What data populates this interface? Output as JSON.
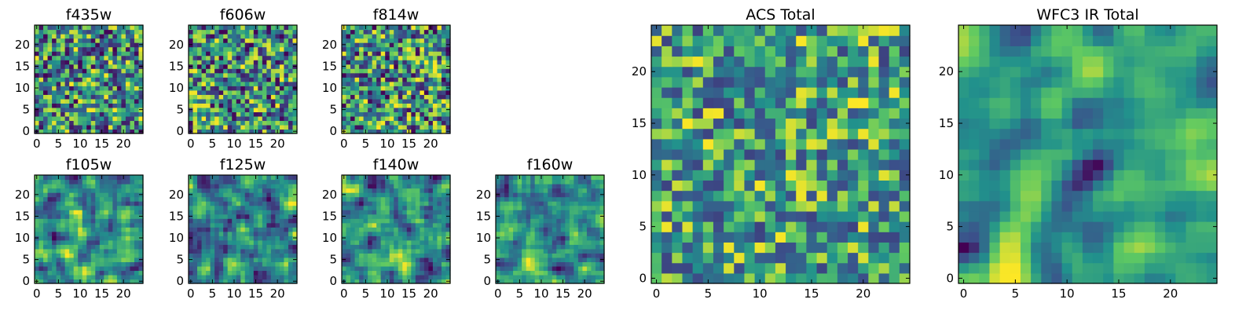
{
  "colormap": [
    "#440154",
    "#3b528b",
    "#21918c",
    "#5ec962",
    "#fde725"
  ],
  "chart_data": [
    {
      "type": "heatmap",
      "title": "f435w",
      "nx": 25,
      "ny": 25,
      "xlim": [
        0,
        24
      ],
      "ylim": [
        0,
        24
      ],
      "xticks": [
        0,
        5,
        10,
        15,
        20
      ],
      "yticks": [
        0,
        5,
        10,
        15,
        20
      ],
      "seed": 101,
      "smooth": 0,
      "contrast": 1.0,
      "lowbias": 0.0
    },
    {
      "type": "heatmap",
      "title": "f606w",
      "nx": 25,
      "ny": 25,
      "xlim": [
        0,
        24
      ],
      "ylim": [
        0,
        24
      ],
      "xticks": [
        0,
        5,
        10,
        15,
        20
      ],
      "yticks": [
        0,
        5,
        10,
        15,
        20
      ],
      "seed": 202,
      "smooth": 0,
      "contrast": 1.0,
      "lowbias": 0.0
    },
    {
      "type": "heatmap",
      "title": "f814w",
      "nx": 25,
      "ny": 25,
      "xlim": [
        0,
        24
      ],
      "ylim": [
        0,
        24
      ],
      "xticks": [
        0,
        5,
        10,
        15,
        20
      ],
      "yticks": [
        0,
        5,
        10,
        15,
        20
      ],
      "seed": 303,
      "smooth": 0,
      "contrast": 1.0,
      "lowbias": 0.0
    },
    {
      "type": "heatmap",
      "title": "f105w",
      "nx": 25,
      "ny": 25,
      "xlim": [
        0,
        24
      ],
      "ylim": [
        0,
        24
      ],
      "xticks": [
        0,
        5,
        10,
        15,
        20
      ],
      "yticks": [
        0,
        5,
        10,
        15,
        20
      ],
      "seed": 404,
      "smooth": 1,
      "contrast": 1.0,
      "lowbias": 0.0
    },
    {
      "type": "heatmap",
      "title": "f125w",
      "nx": 25,
      "ny": 25,
      "xlim": [
        0,
        24
      ],
      "ylim": [
        0,
        24
      ],
      "xticks": [
        0,
        5,
        10,
        15,
        20
      ],
      "yticks": [
        0,
        5,
        10,
        15,
        20
      ],
      "seed": 505,
      "smooth": 1,
      "contrast": 1.0,
      "lowbias": 0.0
    },
    {
      "type": "heatmap",
      "title": "f140w",
      "nx": 25,
      "ny": 25,
      "xlim": [
        0,
        24
      ],
      "ylim": [
        0,
        24
      ],
      "xticks": [
        0,
        5,
        10,
        15,
        20
      ],
      "yticks": [
        0,
        5,
        10,
        15,
        20
      ],
      "seed": 606,
      "smooth": 1,
      "contrast": 1.0,
      "lowbias": 0.0
    },
    {
      "type": "heatmap",
      "title": "f160w",
      "nx": 25,
      "ny": 25,
      "xlim": [
        0,
        24
      ],
      "ylim": [
        0,
        24
      ],
      "xticks": [
        0,
        5,
        10,
        15,
        20
      ],
      "yticks": [
        0,
        5,
        10,
        15,
        20
      ],
      "seed": 707,
      "smooth": 1,
      "contrast": 1.0,
      "lowbias": 0.0
    },
    {
      "type": "heatmap",
      "title": "ACS Total",
      "nx": 25,
      "ny": 25,
      "xlim": [
        0,
        24
      ],
      "ylim": [
        0,
        24
      ],
      "xticks": [
        0,
        5,
        10,
        15,
        20
      ],
      "yticks": [
        0,
        5,
        10,
        15,
        20
      ],
      "seed": 808,
      "smooth": 0,
      "contrast": 0.8,
      "lowbias": 0.2
    },
    {
      "type": "heatmap",
      "title": "WFC3 IR Total",
      "nx": 25,
      "ny": 25,
      "xlim": [
        0,
        24
      ],
      "ylim": [
        0,
        24
      ],
      "xticks": [
        0,
        5,
        10,
        15,
        20
      ],
      "yticks": [
        0,
        5,
        10,
        15,
        20
      ],
      "seed": 909,
      "smooth": 2,
      "contrast": 1.3,
      "lowbias": 0.0
    }
  ]
}
